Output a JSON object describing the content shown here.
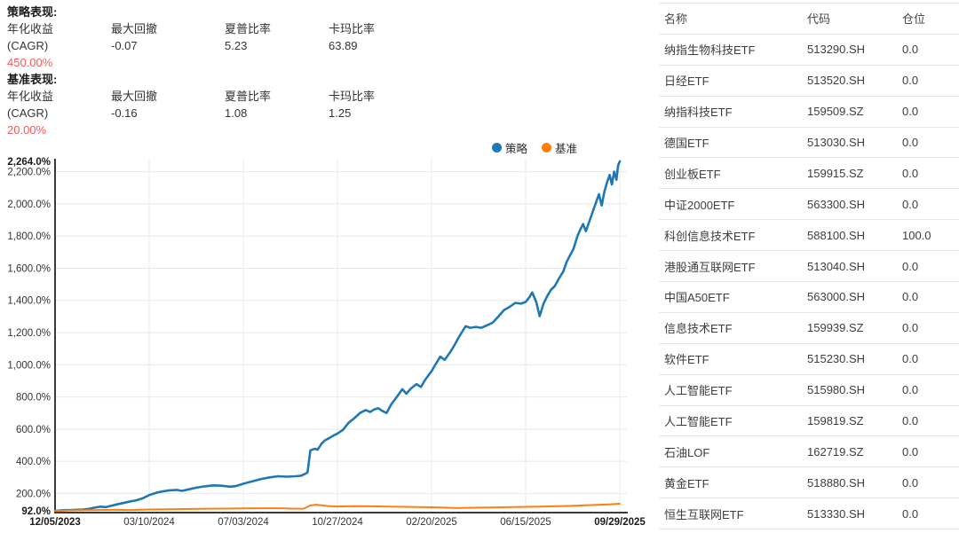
{
  "colors": {
    "strategy": "#1f77b4",
    "benchmark": "#ff7f0e",
    "highlight_red": "#f25c5c",
    "grid": "#e8e8e8",
    "axis": "#3a3a3a",
    "border": "#e7e7e7"
  },
  "stats": {
    "strategy": {
      "title": "策略表现:",
      "cagr_label_line1": "年化收益",
      "cagr_label_line2": "(CAGR)",
      "cagr_value": "450.00%",
      "metrics": [
        {
          "label": "最大回撤",
          "value": "-0.07"
        },
        {
          "label": "夏普比率",
          "value": "5.23"
        },
        {
          "label": "卡玛比率",
          "value": "63.89"
        }
      ]
    },
    "benchmark": {
      "title": "基准表现:",
      "cagr_label_line1": "年化收益",
      "cagr_label_line2": "(CAGR)",
      "cagr_value": "20.00%",
      "metrics": [
        {
          "label": "最大回撤",
          "value": "-0.16"
        },
        {
          "label": "夏普比率",
          "value": "1.08"
        },
        {
          "label": "卡玛比率",
          "value": "1.25"
        }
      ]
    }
  },
  "chart_data": {
    "type": "line",
    "title": "",
    "xlabel": "",
    "ylabel": "",
    "grid": true,
    "legend_position": "top-right",
    "legend": [
      {
        "name": "策略",
        "color": "#1f77b4"
      },
      {
        "name": "基准",
        "color": "#ff7f0e"
      }
    ],
    "x_axis": {
      "tick_labels": [
        "12/05/2023",
        "03/10/2024",
        "07/03/2024",
        "10/27/2024",
        "02/20/2025",
        "06/15/2025",
        "09/29/2025"
      ],
      "bold_tick_indices": [
        0,
        6
      ]
    },
    "y_axis": {
      "unit": "%",
      "min": 92.0,
      "max": 2264.0,
      "min_label": "92.0%",
      "max_label": "2,264.0%",
      "tick_values": [
        200,
        400,
        600,
        800,
        1000,
        1200,
        1400,
        1600,
        1800,
        2000,
        2200
      ],
      "tick_labels": [
        "200.0%",
        "400.0%",
        "600.0%",
        "800.0%",
        "1,000.0%",
        "1,200.0%",
        "1,400.0%",
        "1,600.0%",
        "1,800.0%",
        "2,000.0%",
        "2,200.0%"
      ]
    },
    "series": [
      {
        "name": "策略",
        "color": "#1f77b4",
        "points": [
          [
            0,
            92
          ],
          [
            0.015,
            96
          ],
          [
            0.03,
            97
          ],
          [
            0.05,
            100
          ],
          [
            0.06,
            104
          ],
          [
            0.07,
            112
          ],
          [
            0.08,
            118
          ],
          [
            0.09,
            115
          ],
          [
            0.1,
            124
          ],
          [
            0.11,
            132
          ],
          [
            0.12,
            140
          ],
          [
            0.13,
            148
          ],
          [
            0.145,
            158
          ],
          [
            0.155,
            170
          ],
          [
            0.167,
            190
          ],
          [
            0.18,
            205
          ],
          [
            0.19,
            212
          ],
          [
            0.2,
            218
          ],
          [
            0.215,
            222
          ],
          [
            0.225,
            216
          ],
          [
            0.24,
            228
          ],
          [
            0.25,
            236
          ],
          [
            0.265,
            244
          ],
          [
            0.28,
            250
          ],
          [
            0.295,
            248
          ],
          [
            0.31,
            242
          ],
          [
            0.32,
            246
          ],
          [
            0.333,
            260
          ],
          [
            0.35,
            276
          ],
          [
            0.365,
            290
          ],
          [
            0.38,
            300
          ],
          [
            0.395,
            307
          ],
          [
            0.41,
            304
          ],
          [
            0.425,
            307
          ],
          [
            0.435,
            310
          ],
          [
            0.443,
            322
          ],
          [
            0.447,
            330
          ],
          [
            0.452,
            468
          ],
          [
            0.46,
            478
          ],
          [
            0.465,
            472
          ],
          [
            0.472,
            510
          ],
          [
            0.478,
            530
          ],
          [
            0.486,
            545
          ],
          [
            0.493,
            560
          ],
          [
            0.5,
            572
          ],
          [
            0.51,
            596
          ],
          [
            0.52,
            640
          ],
          [
            0.53,
            668
          ],
          [
            0.54,
            700
          ],
          [
            0.55,
            718
          ],
          [
            0.558,
            706
          ],
          [
            0.565,
            722
          ],
          [
            0.572,
            730
          ],
          [
            0.58,
            712
          ],
          [
            0.587,
            700
          ],
          [
            0.595,
            752
          ],
          [
            0.605,
            800
          ],
          [
            0.615,
            848
          ],
          [
            0.622,
            820
          ],
          [
            0.63,
            852
          ],
          [
            0.64,
            880
          ],
          [
            0.648,
            862
          ],
          [
            0.655,
            905
          ],
          [
            0.6667,
            960
          ],
          [
            0.675,
            1010
          ],
          [
            0.682,
            1050
          ],
          [
            0.69,
            1030
          ],
          [
            0.7,
            1080
          ],
          [
            0.707,
            1120
          ],
          [
            0.713,
            1160
          ],
          [
            0.72,
            1200
          ],
          [
            0.727,
            1240
          ],
          [
            0.735,
            1230
          ],
          [
            0.745,
            1235
          ],
          [
            0.755,
            1230
          ],
          [
            0.765,
            1245
          ],
          [
            0.775,
            1262
          ],
          [
            0.785,
            1300
          ],
          [
            0.795,
            1340
          ],
          [
            0.805,
            1360
          ],
          [
            0.815,
            1385
          ],
          [
            0.825,
            1380
          ],
          [
            0.8333,
            1390
          ],
          [
            0.84,
            1420
          ],
          [
            0.845,
            1450
          ],
          [
            0.852,
            1390
          ],
          [
            0.858,
            1302
          ],
          [
            0.865,
            1380
          ],
          [
            0.872,
            1430
          ],
          [
            0.878,
            1465
          ],
          [
            0.885,
            1490
          ],
          [
            0.893,
            1540
          ],
          [
            0.9,
            1580
          ],
          [
            0.906,
            1640
          ],
          [
            0.912,
            1680
          ],
          [
            0.918,
            1720
          ],
          [
            0.925,
            1800
          ],
          [
            0.93,
            1840
          ],
          [
            0.935,
            1875
          ],
          [
            0.94,
            1830
          ],
          [
            0.947,
            1900
          ],
          [
            0.953,
            1960
          ],
          [
            0.958,
            2010
          ],
          [
            0.963,
            2060
          ],
          [
            0.968,
            1990
          ],
          [
            0.973,
            2080
          ],
          [
            0.978,
            2140
          ],
          [
            0.982,
            2180
          ],
          [
            0.986,
            2120
          ],
          [
            0.99,
            2200
          ],
          [
            0.994,
            2150
          ],
          [
            0.997,
            2240
          ],
          [
            1,
            2264
          ]
        ]
      },
      {
        "name": "基准",
        "color": "#ff7f0e",
        "points": [
          [
            0,
            92
          ],
          [
            0.03,
            95
          ],
          [
            0.06,
            96
          ],
          [
            0.1,
            98
          ],
          [
            0.135,
            97
          ],
          [
            0.167,
            100
          ],
          [
            0.2,
            102
          ],
          [
            0.23,
            103
          ],
          [
            0.27,
            105
          ],
          [
            0.3,
            106
          ],
          [
            0.333,
            107
          ],
          [
            0.37,
            108
          ],
          [
            0.4,
            108
          ],
          [
            0.42,
            106
          ],
          [
            0.44,
            105
          ],
          [
            0.452,
            125
          ],
          [
            0.462,
            130
          ],
          [
            0.472,
            127
          ],
          [
            0.483,
            122
          ],
          [
            0.5,
            119
          ],
          [
            0.53,
            121
          ],
          [
            0.56,
            120
          ],
          [
            0.59,
            118
          ],
          [
            0.62,
            117
          ],
          [
            0.6667,
            114
          ],
          [
            0.69,
            112
          ],
          [
            0.71,
            109
          ],
          [
            0.73,
            111
          ],
          [
            0.75,
            112
          ],
          [
            0.77,
            113
          ],
          [
            0.79,
            114
          ],
          [
            0.81,
            115
          ],
          [
            0.8333,
            117
          ],
          [
            0.86,
            118
          ],
          [
            0.88,
            120
          ],
          [
            0.9,
            122
          ],
          [
            0.92,
            124
          ],
          [
            0.94,
            126
          ],
          [
            0.96,
            129
          ],
          [
            0.98,
            132
          ],
          [
            1,
            136
          ]
        ]
      }
    ]
  },
  "table": {
    "headers": [
      "名称",
      "代码",
      "仓位"
    ],
    "rows": [
      {
        "name": "纳指生物科技ETF",
        "code": "513290.SH",
        "position": "0.0"
      },
      {
        "name": "日经ETF",
        "code": "513520.SH",
        "position": "0.0"
      },
      {
        "name": "纳指科技ETF",
        "code": "159509.SZ",
        "position": "0.0"
      },
      {
        "name": "德国ETF",
        "code": "513030.SH",
        "position": "0.0"
      },
      {
        "name": "创业板ETF",
        "code": "159915.SZ",
        "position": "0.0"
      },
      {
        "name": "中证2000ETF",
        "code": "563300.SH",
        "position": "0.0"
      },
      {
        "name": "科创信息技术ETF",
        "code": "588100.SH",
        "position": "100.0"
      },
      {
        "name": "港股通互联网ETF",
        "code": "513040.SH",
        "position": "0.0"
      },
      {
        "name": "中国A50ETF",
        "code": "563000.SH",
        "position": "0.0"
      },
      {
        "name": "信息技术ETF",
        "code": "159939.SZ",
        "position": "0.0"
      },
      {
        "name": "软件ETF",
        "code": "515230.SH",
        "position": "0.0"
      },
      {
        "name": "人工智能ETF",
        "code": "515980.SH",
        "position": "0.0"
      },
      {
        "name": "人工智能ETF",
        "code": "159819.SZ",
        "position": "0.0"
      },
      {
        "name": "石油LOF",
        "code": "162719.SZ",
        "position": "0.0"
      },
      {
        "name": "黄金ETF",
        "code": "518880.SH",
        "position": "0.0"
      },
      {
        "name": "恒生互联网ETF",
        "code": "513330.SH",
        "position": "0.0"
      }
    ]
  }
}
